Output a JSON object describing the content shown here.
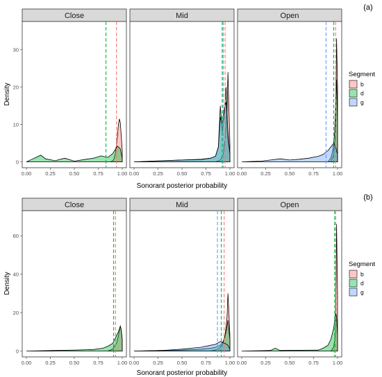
{
  "chart_data": [
    {
      "type": "area",
      "tag": "(a)",
      "facets": [
        "Close",
        "Mid",
        "Open"
      ],
      "xlabel": "Sonorant posterior probability",
      "ylabel": "Density",
      "xlim": [
        0,
        1
      ],
      "ylim": [
        0,
        36
      ],
      "x_ticks": [
        0.0,
        0.25,
        0.5,
        0.75,
        1.0
      ],
      "x_tick_labels": [
        "0.00",
        "0.25",
        "0.50",
        "0.75",
        "1.00"
      ],
      "y_ticks": [
        0,
        10,
        20,
        30
      ],
      "y_tick_labels": [
        "0",
        "10",
        "20",
        "30"
      ],
      "legend": {
        "title": "Segment",
        "placement": "right",
        "entries": [
          "b",
          "d",
          "g"
        ]
      },
      "colors": {
        "b": "#F8766D",
        "d": "#00BA38",
        "g": "#619CFF"
      },
      "means": {
        "Close": {
          "b": 0.94,
          "d": 0.83
        },
        "Mid": {
          "b": 0.95,
          "d": 0.92,
          "g": 0.93
        },
        "Open": {
          "b": 0.98,
          "d": 0.96,
          "g": 0.88
        }
      },
      "series": {
        "Close": [
          {
            "name": "b",
            "x": [
              0.88,
              0.91,
              0.93,
              0.95,
              0.96,
              0.97,
              0.98,
              0.99,
              1.0
            ],
            "y": [
              0,
              0.5,
              2.5,
              7,
              10,
              11.5,
              10.5,
              7,
              3
            ]
          },
          {
            "name": "d",
            "x": [
              0.0,
              0.05,
              0.1,
              0.15,
              0.2,
              0.3,
              0.4,
              0.5,
              0.6,
              0.7,
              0.78,
              0.85,
              0.9,
              0.95,
              0.98,
              1.0
            ],
            "y": [
              0,
              0.6,
              1.2,
              1.8,
              0.8,
              0.3,
              1.0,
              0.2,
              0.6,
              1.0,
              1.6,
              1.2,
              2.2,
              4.2,
              3.5,
              1
            ]
          }
        ],
        "Mid": [
          {
            "name": "b",
            "x": [
              0.85,
              0.9,
              0.93,
              0.95,
              0.97,
              0.98,
              0.99,
              1.0
            ],
            "y": [
              0,
              0.5,
              2,
              6,
              14,
              24,
              14,
              5
            ]
          },
          {
            "name": "d",
            "x": [
              0.0,
              0.3,
              0.5,
              0.7,
              0.8,
              0.85,
              0.88,
              0.9,
              0.92,
              0.94,
              0.96,
              0.98,
              1.0
            ],
            "y": [
              0,
              0.3,
              0.5,
              0.6,
              1,
              1.5,
              4,
              15,
              8,
              12,
              20,
              6,
              2
            ]
          },
          {
            "name": "g",
            "x": [
              0.0,
              0.3,
              0.5,
              0.7,
              0.8,
              0.85,
              0.88,
              0.9,
              0.92,
              0.94,
              0.96,
              0.98,
              1.0
            ],
            "y": [
              0,
              0.3,
              0.5,
              0.7,
              1,
              1.5,
              4,
              12,
              10,
              14,
              16,
              8,
              2
            ]
          }
        ],
        "Open": [
          {
            "name": "b",
            "x": [
              0.93,
              0.96,
              0.98,
              0.99,
              1.0
            ],
            "y": [
              0,
              2,
              8,
              33,
              20
            ]
          },
          {
            "name": "d",
            "x": [
              0.9,
              0.93,
              0.95,
              0.97,
              0.98,
              0.99,
              1.0
            ],
            "y": [
              0,
              1,
              3,
              8,
              15,
              22,
              10
            ]
          },
          {
            "name": "g",
            "x": [
              0.0,
              0.1,
              0.2,
              0.3,
              0.4,
              0.5,
              0.6,
              0.7,
              0.8,
              0.85,
              0.9,
              0.93,
              0.96,
              0.98,
              1.0
            ],
            "y": [
              0,
              0.1,
              0.2,
              0.5,
              0.8,
              0.5,
              0.7,
              1.0,
              1.5,
              2,
              3,
              4,
              5,
              4,
              2
            ]
          }
        ]
      }
    },
    {
      "type": "area",
      "tag": "(b)",
      "facets": [
        "Close",
        "Mid",
        "Open"
      ],
      "xlabel": "Sonorant posterior probability",
      "ylabel": "Density",
      "xlim": [
        0,
        1
      ],
      "ylim": [
        0,
        70
      ],
      "x_ticks": [
        0.0,
        0.25,
        0.5,
        0.75,
        1.0
      ],
      "x_tick_labels": [
        "0.00",
        "0.25",
        "0.50",
        "0.75",
        "1.00"
      ],
      "y_ticks": [
        0,
        20,
        40,
        60
      ],
      "y_tick_labels": [
        "0",
        "20",
        "40",
        "60"
      ],
      "legend": {
        "title": "Segment",
        "placement": "right",
        "entries": [
          "b",
          "d",
          "g"
        ]
      },
      "colors": {
        "b": "#F8766D",
        "d": "#00BA38",
        "g": "#619CFF"
      },
      "means": {
        "Close": {
          "b": 0.93,
          "d": 0.91
        },
        "Mid": {
          "b": 0.94,
          "d": 0.91,
          "g": 0.87
        },
        "Open": {
          "b": 0.98,
          "d": 0.97
        }
      },
      "series": {
        "Close": [
          {
            "name": "b",
            "x": [
              0.85,
              0.9,
              0.94,
              0.96,
              0.98,
              0.99,
              1.0
            ],
            "y": [
              0,
              1,
              4,
              8,
              13,
              11,
              6
            ]
          },
          {
            "name": "d",
            "x": [
              0.0,
              0.3,
              0.5,
              0.7,
              0.8,
              0.85,
              0.9,
              0.94,
              0.96,
              0.98,
              0.99,
              1.0
            ],
            "y": [
              0,
              0.3,
              0.5,
              0.8,
              1.5,
              2.5,
              4,
              8,
              10,
              13,
              11,
              6
            ]
          }
        ],
        "Mid": [
          {
            "name": "b",
            "x": [
              0.8,
              0.88,
              0.92,
              0.95,
              0.97,
              0.98,
              0.99,
              1.0
            ],
            "y": [
              0,
              1,
              3,
              8,
              18,
              30,
              20,
              8
            ]
          },
          {
            "name": "d",
            "x": [
              0.0,
              0.3,
              0.5,
              0.7,
              0.8,
              0.85,
              0.9,
              0.93,
              0.96,
              0.98,
              1.0
            ],
            "y": [
              0,
              0.3,
              0.5,
              1,
              1.5,
              2,
              3,
              5,
              10,
              16,
              6
            ]
          },
          {
            "name": "g",
            "x": [
              0.0,
              0.3,
              0.5,
              0.6,
              0.7,
              0.8,
              0.85,
              0.9,
              0.92,
              0.95,
              0.98,
              1.0
            ],
            "y": [
              0,
              0.3,
              1,
              1.5,
              2,
              3,
              3.5,
              5,
              4.5,
              4,
              3,
              1
            ]
          }
        ],
        "Open": [
          {
            "name": "b",
            "x": [
              0.93,
              0.96,
              0.98,
              0.99,
              1.0
            ],
            "y": [
              0,
              2,
              10,
              66,
              30
            ]
          },
          {
            "name": "d",
            "x": [
              0.0,
              0.3,
              0.35,
              0.4,
              0.8,
              0.85,
              0.9,
              0.93,
              0.96,
              0.98,
              0.99,
              1.0
            ],
            "y": [
              0,
              0.3,
              1.5,
              0.3,
              0.5,
              1.5,
              3,
              6,
              12,
              20,
              18,
              8
            ]
          }
        ]
      }
    }
  ]
}
